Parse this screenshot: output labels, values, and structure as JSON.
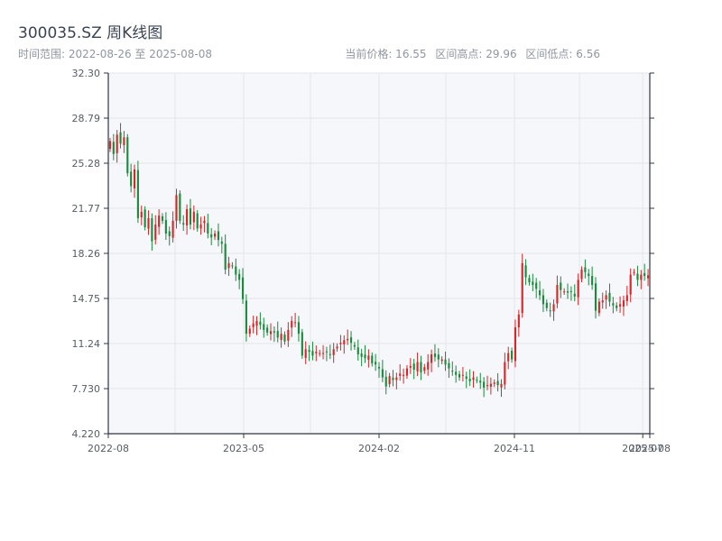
{
  "header": {
    "title": "300035.SZ 周K线图",
    "range_label": "时间范围: 2022-08-26 至 2025-08-08",
    "stats": {
      "current": "当前价格: 16.55",
      "high": "区间高点: 29.96",
      "low": "区间低点: 6.56"
    }
  },
  "colors": {
    "up": "#d62728",
    "down": "#1a8a3c",
    "plot_bg": "#f5f7fa",
    "grid": "#e3e6eb",
    "axis": "#2f3640"
  },
  "chart_data": {
    "type": "candlestick",
    "title": "300035.SZ 周K线图",
    "ylim": [
      4.22,
      32.3
    ],
    "yticks": [
      "32.30",
      "28.79",
      "25.28",
      "21.77",
      "18.26",
      "14.75",
      "11.24",
      "7.730",
      "4.220"
    ],
    "xticks": [
      "2022-08",
      "2023-05",
      "2024-02",
      "2024-11",
      "2025-07",
      "2025-08"
    ],
    "xlim_weeks": [
      0,
      154
    ],
    "xtick_weeks": [
      0,
      38.5,
      77,
      115.5,
      152,
      154
    ],
    "grid": true,
    "legend": "none",
    "closes": [
      27.0,
      26.0,
      27.5,
      26.8,
      27.3,
      24.5,
      23.5,
      24.8,
      21.0,
      21.5,
      20.3,
      21.0,
      19.2,
      20.5,
      21.2,
      20.8,
      19.8,
      19.6,
      20.8,
      22.8,
      20.8,
      20.5,
      21.7,
      20.5,
      21.5,
      20.2,
      20.5,
      20.8,
      19.8,
      19.5,
      19.8,
      19.3,
      19.0,
      17.0,
      17.5,
      17.3,
      16.6,
      16.2,
      14.7,
      12.0,
      12.4,
      12.8,
      13.0,
      12.7,
      12.3,
      12.1,
      12.2,
      12.1,
      11.7,
      12.0,
      11.4,
      12.3,
      13.0,
      12.9,
      12.0,
      10.3,
      10.8,
      10.6,
      10.3,
      10.6,
      10.5,
      10.5,
      10.6,
      10.4,
      10.8,
      11.0,
      11.3,
      11.5,
      11.6,
      11.3,
      11.0,
      10.4,
      10.2,
      10.1,
      10.3,
      9.7,
      9.6,
      9.3,
      8.6,
      7.9,
      8.7,
      8.4,
      8.6,
      8.9,
      8.8,
      9.3,
      9.5,
      9.2,
      9.8,
      9.0,
      9.4,
      9.8,
      10.4,
      10.2,
      10.0,
      10.0,
      9.6,
      9.3,
      9.1,
      8.8,
      8.6,
      8.8,
      8.5,
      8.3,
      8.6,
      8.4,
      8.2,
      7.8,
      8.0,
      8.1,
      8.2,
      8.0,
      8.1,
      9.8,
      10.5,
      10.0,
      12.5,
      13.5,
      17.5,
      16.4,
      16.0,
      15.8,
      15.5,
      15.0,
      14.3,
      14.0,
      13.8,
      14.3,
      15.8,
      15.4,
      15.3,
      15.2,
      15.3,
      14.9,
      16.2,
      17.0,
      16.8,
      16.5,
      15.8,
      13.8,
      14.5,
      14.6,
      15.0,
      14.5,
      14.2,
      14.0,
      14.3,
      14.6,
      15.0,
      16.6,
      16.8,
      16.2,
      16.6,
      16.5,
      16.55
    ],
    "high_point": 29.96,
    "low_point": 6.56,
    "current_price": 16.55
  }
}
